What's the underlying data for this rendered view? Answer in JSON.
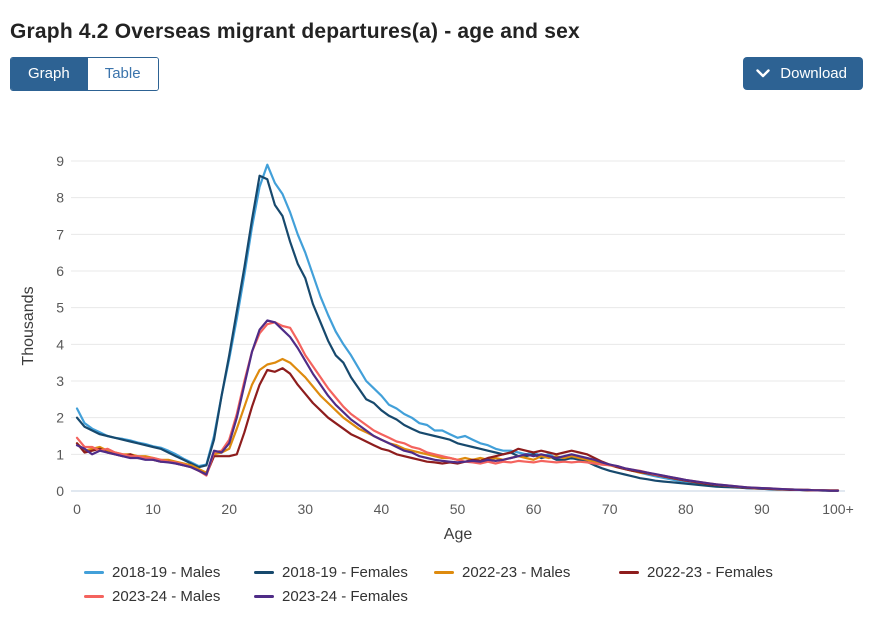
{
  "header": {
    "title": "Graph 4.2 Overseas migrant departures(a) - age and sex",
    "tabs": [
      {
        "label": "Graph",
        "active": true
      },
      {
        "label": "Table",
        "active": false
      }
    ],
    "download_label": "Download"
  },
  "ui_colors": {
    "accent_blue": "#2d6293",
    "inactive_tab_text": "#3b74ac",
    "grid_line": "#e8e8e8",
    "axis_base_line": "#c3d2e0",
    "tick_text": "#595959",
    "axis_title_text": "#3c3c3c",
    "legend_text": "#333333"
  },
  "chart_data": {
    "type": "line",
    "title": "Graph 4.2 Overseas migrant departures(a) - age and sex",
    "xlabel": "Age",
    "ylabel": "Thousands",
    "ylim": [
      0,
      9
    ],
    "y_ticks": [
      0,
      1,
      2,
      3,
      4,
      5,
      6,
      7,
      8,
      9
    ],
    "x_tick_labels": [
      "0",
      "10",
      "20",
      "30",
      "40",
      "50",
      "60",
      "70",
      "80",
      "90",
      "100+"
    ],
    "grid": "horizontal",
    "legend_position": "bottom",
    "x": [
      0,
      1,
      2,
      3,
      4,
      5,
      6,
      7,
      8,
      9,
      10,
      11,
      12,
      13,
      14,
      15,
      16,
      17,
      18,
      19,
      20,
      21,
      22,
      23,
      24,
      25,
      26,
      27,
      28,
      29,
      30,
      31,
      32,
      33,
      34,
      35,
      36,
      37,
      38,
      39,
      40,
      41,
      42,
      43,
      44,
      45,
      46,
      47,
      48,
      49,
      50,
      51,
      52,
      53,
      54,
      55,
      56,
      57,
      58,
      59,
      60,
      61,
      62,
      63,
      64,
      65,
      66,
      67,
      68,
      69,
      70,
      71,
      72,
      73,
      74,
      75,
      76,
      77,
      78,
      79,
      80,
      81,
      82,
      83,
      84,
      85,
      86,
      87,
      88,
      89,
      90,
      91,
      92,
      93,
      94,
      95,
      96,
      97,
      98,
      99,
      100
    ],
    "series": [
      {
        "name": "2018-19 - Males",
        "color": "#42a0d9",
        "values": [
          2.25,
          1.85,
          1.7,
          1.6,
          1.5,
          1.45,
          1.42,
          1.38,
          1.32,
          1.28,
          1.22,
          1.18,
          1.1,
          1.0,
          0.88,
          0.78,
          0.68,
          0.72,
          1.5,
          2.6,
          3.6,
          4.7,
          5.9,
          7.2,
          8.3,
          8.9,
          8.4,
          8.1,
          7.6,
          7.0,
          6.5,
          5.9,
          5.3,
          4.8,
          4.35,
          4.0,
          3.7,
          3.35,
          3.0,
          2.8,
          2.6,
          2.35,
          2.25,
          2.1,
          2.0,
          1.85,
          1.8,
          1.65,
          1.65,
          1.55,
          1.45,
          1.5,
          1.4,
          1.3,
          1.25,
          1.15,
          1.1,
          1.1,
          1.05,
          1.0,
          1.05,
          0.95,
          1.0,
          0.9,
          0.92,
          0.88,
          0.9,
          0.85,
          0.8,
          0.75,
          0.72,
          0.65,
          0.6,
          0.55,
          0.5,
          0.45,
          0.4,
          0.36,
          0.32,
          0.28,
          0.25,
          0.22,
          0.2,
          0.17,
          0.15,
          0.13,
          0.11,
          0.1,
          0.08,
          0.07,
          0.06,
          0.05,
          0.05,
          0.04,
          0.03,
          0.03,
          0.02,
          0.02,
          0.02,
          0.01,
          0.01
        ]
      },
      {
        "name": "2018-19 - Females",
        "color": "#17496d",
        "values": [
          2.0,
          1.75,
          1.65,
          1.55,
          1.5,
          1.45,
          1.4,
          1.35,
          1.3,
          1.25,
          1.2,
          1.15,
          1.05,
          0.95,
          0.85,
          0.75,
          0.65,
          0.7,
          1.4,
          2.6,
          3.7,
          4.9,
          6.1,
          7.4,
          8.6,
          8.5,
          7.8,
          7.5,
          6.8,
          6.2,
          5.8,
          5.1,
          4.6,
          4.1,
          3.7,
          3.5,
          3.1,
          2.8,
          2.5,
          2.4,
          2.2,
          2.05,
          1.95,
          1.8,
          1.7,
          1.6,
          1.55,
          1.5,
          1.45,
          1.4,
          1.3,
          1.25,
          1.2,
          1.15,
          1.1,
          1.05,
          1.0,
          1.05,
          0.95,
          0.95,
          1.0,
          0.9,
          0.95,
          0.85,
          0.85,
          0.9,
          0.85,
          0.8,
          0.7,
          0.62,
          0.55,
          0.5,
          0.45,
          0.4,
          0.35,
          0.32,
          0.28,
          0.26,
          0.24,
          0.22,
          0.2,
          0.18,
          0.16,
          0.14,
          0.12,
          0.11,
          0.1,
          0.09,
          0.08,
          0.07,
          0.06,
          0.05,
          0.04,
          0.04,
          0.03,
          0.03,
          0.02,
          0.02,
          0.01,
          0.01,
          0.01
        ]
      },
      {
        "name": "2022-23 - Males",
        "color": "#de8b0e",
        "values": [
          1.3,
          1.1,
          1.15,
          1.2,
          1.1,
          1.05,
          1.0,
          1.0,
          0.95,
          0.95,
          0.9,
          0.85,
          0.85,
          0.8,
          0.75,
          0.7,
          0.6,
          0.5,
          1.0,
          1.05,
          1.15,
          1.7,
          2.3,
          2.9,
          3.3,
          3.45,
          3.5,
          3.6,
          3.5,
          3.3,
          3.1,
          2.85,
          2.6,
          2.4,
          2.2,
          2.0,
          1.85,
          1.7,
          1.6,
          1.5,
          1.4,
          1.3,
          1.25,
          1.15,
          1.1,
          1.05,
          1.0,
          0.95,
          0.9,
          0.9,
          0.85,
          0.9,
          0.85,
          0.9,
          0.85,
          0.9,
          0.85,
          0.9,
          0.95,
          0.9,
          0.85,
          0.95,
          0.9,
          0.95,
          0.9,
          0.95,
          0.9,
          0.85,
          0.8,
          0.75,
          0.7,
          0.65,
          0.6,
          0.55,
          0.5,
          0.48,
          0.44,
          0.4,
          0.36,
          0.32,
          0.28,
          0.25,
          0.22,
          0.2,
          0.17,
          0.15,
          0.13,
          0.11,
          0.1,
          0.08,
          0.07,
          0.06,
          0.05,
          0.04,
          0.04,
          0.03,
          0.03,
          0.02,
          0.02,
          0.02,
          0.02
        ]
      },
      {
        "name": "2022-23 - Females",
        "color": "#8e1d1d",
        "values": [
          1.3,
          1.05,
          1.1,
          1.15,
          1.05,
          1.0,
          0.95,
          1.0,
          0.9,
          0.9,
          0.85,
          0.8,
          0.8,
          0.75,
          0.7,
          0.65,
          0.55,
          0.45,
          0.95,
          0.95,
          0.95,
          1.0,
          1.6,
          2.3,
          2.9,
          3.3,
          3.25,
          3.35,
          3.2,
          2.9,
          2.65,
          2.4,
          2.2,
          2.0,
          1.85,
          1.7,
          1.55,
          1.45,
          1.35,
          1.25,
          1.15,
          1.1,
          1.0,
          0.95,
          0.9,
          0.85,
          0.8,
          0.78,
          0.75,
          0.78,
          0.75,
          0.8,
          0.85,
          0.82,
          0.9,
          0.95,
          1.0,
          1.05,
          1.15,
          1.1,
          1.05,
          1.1,
          1.05,
          1.0,
          1.05,
          1.1,
          1.05,
          1.0,
          0.9,
          0.8,
          0.72,
          0.65,
          0.6,
          0.55,
          0.52,
          0.48,
          0.44,
          0.4,
          0.36,
          0.32,
          0.28,
          0.25,
          0.22,
          0.19,
          0.17,
          0.15,
          0.13,
          0.11,
          0.09,
          0.08,
          0.07,
          0.06,
          0.05,
          0.04,
          0.03,
          0.03,
          0.02,
          0.02,
          0.02,
          0.01,
          0.01
        ]
      },
      {
        "name": "2023-24 - Males",
        "color": "#f4635e",
        "values": [
          1.45,
          1.2,
          1.2,
          1.1,
          1.15,
          1.05,
          1.0,
          0.95,
          0.95,
          0.9,
          0.9,
          0.85,
          0.8,
          0.78,
          0.72,
          0.65,
          0.55,
          0.42,
          1.05,
          1.1,
          1.4,
          2.1,
          3.0,
          3.8,
          4.3,
          4.55,
          4.6,
          4.5,
          4.45,
          4.1,
          3.7,
          3.4,
          3.1,
          2.8,
          2.55,
          2.3,
          2.1,
          1.95,
          1.8,
          1.65,
          1.55,
          1.45,
          1.35,
          1.3,
          1.2,
          1.15,
          1.05,
          1.0,
          0.95,
          0.9,
          0.85,
          0.8,
          0.78,
          0.75,
          0.8,
          0.75,
          0.8,
          0.78,
          0.82,
          0.8,
          0.78,
          0.82,
          0.8,
          0.78,
          0.8,
          0.78,
          0.8,
          0.78,
          0.75,
          0.72,
          0.7,
          0.68,
          0.62,
          0.58,
          0.55,
          0.5,
          0.45,
          0.42,
          0.38,
          0.34,
          0.3,
          0.27,
          0.24,
          0.21,
          0.18,
          0.16,
          0.14,
          0.12,
          0.1,
          0.09,
          0.08,
          0.07,
          0.06,
          0.05,
          0.04,
          0.03,
          0.03,
          0.02,
          0.02,
          0.02,
          0.02
        ]
      },
      {
        "name": "2023-24 - Females",
        "color": "#4f2c87",
        "values": [
          1.25,
          1.15,
          1.0,
          1.1,
          1.05,
          1.0,
          0.95,
          0.9,
          0.9,
          0.85,
          0.85,
          0.8,
          0.78,
          0.75,
          0.7,
          0.65,
          0.55,
          0.45,
          1.1,
          1.05,
          1.3,
          2.0,
          2.9,
          3.8,
          4.4,
          4.65,
          4.6,
          4.4,
          4.2,
          3.9,
          3.55,
          3.2,
          2.9,
          2.6,
          2.35,
          2.15,
          1.95,
          1.8,
          1.65,
          1.5,
          1.4,
          1.3,
          1.2,
          1.1,
          1.05,
          0.95,
          0.9,
          0.85,
          0.82,
          0.8,
          0.78,
          0.8,
          0.82,
          0.8,
          0.85,
          0.82,
          0.85,
          0.9,
          0.95,
          1.0,
          0.95,
          1.0,
          0.95,
          0.9,
          0.95,
          1.0,
          0.95,
          0.9,
          0.85,
          0.78,
          0.72,
          0.68,
          0.62,
          0.58,
          0.54,
          0.5,
          0.46,
          0.42,
          0.38,
          0.34,
          0.3,
          0.27,
          0.24,
          0.21,
          0.18,
          0.16,
          0.14,
          0.12,
          0.1,
          0.09,
          0.08,
          0.07,
          0.06,
          0.05,
          0.04,
          0.03,
          0.03,
          0.02,
          0.02,
          0.01,
          0.01
        ]
      }
    ]
  }
}
